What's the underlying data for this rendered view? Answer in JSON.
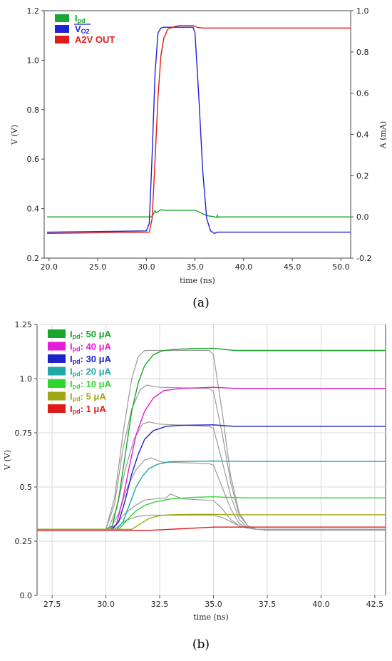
{
  "chart_data": [
    {
      "type": "line",
      "caption": "(a)",
      "xlabel": "time (ns)",
      "ylabel": "V (V)",
      "ylabel_right": "A (mA)",
      "xlim": [
        19.5,
        51.0
      ],
      "ylim": [
        0.2,
        1.2
      ],
      "ylim_right": [
        -0.2,
        1.0
      ],
      "xticks": [
        "20.0",
        "25.0",
        "30.0",
        "35.0",
        "40.0",
        "45.0",
        "50.0"
      ],
      "yticks": [
        "0.2",
        "0.4",
        "0.6",
        "0.8",
        "1.0",
        "1.2"
      ],
      "yticks_right": [
        "-0.2",
        "0.0",
        "0.2",
        "0.4",
        "0.6",
        "0.8",
        "1.0"
      ],
      "grid": false,
      "legend_position": "top-left",
      "series": [
        {
          "name_main": "I",
          "name_sub": "pd",
          "name": "Ipd",
          "color": "#1aa632",
          "axis": "right",
          "x": [
            19.8,
            30.5,
            30.7,
            30.9,
            31.0,
            31.2,
            31.5,
            31.8,
            34.9,
            35.1,
            35.6,
            36.0,
            36.5,
            37.0,
            37.2,
            37.3,
            37.4,
            37.6,
            51.0
          ],
          "y": [
            0.0,
            0.0,
            0.012,
            0.03,
            0.02,
            0.025,
            0.035,
            0.032,
            0.032,
            0.03,
            0.02,
            0.01,
            0.004,
            0.001,
            -0.004,
            0.008,
            -0.002,
            0.0,
            0.0
          ]
        },
        {
          "name_main": "V",
          "name_sub": "O2",
          "name": "VO2",
          "overline": true,
          "color": "#1f22d6",
          "axis": "left",
          "x": [
            19.8,
            30.0,
            30.3,
            30.6,
            30.9,
            31.2,
            31.5,
            31.8,
            32.2,
            34.8,
            35.0,
            35.4,
            35.8,
            36.2,
            36.6,
            37.0,
            37.3,
            37.6,
            38.0,
            51.0
          ],
          "y": [
            0.305,
            0.31,
            0.34,
            0.62,
            0.95,
            1.11,
            1.13,
            1.133,
            1.133,
            1.133,
            1.11,
            0.85,
            0.55,
            0.36,
            0.31,
            0.3,
            0.305,
            0.305,
            0.305,
            0.305
          ]
        },
        {
          "name_main": "A2V OUT",
          "name_sub": "",
          "name": "A2V OUT",
          "color": "#e01b1b",
          "axis": "left",
          "x": [
            19.8,
            30.3,
            30.6,
            30.9,
            31.2,
            31.5,
            31.8,
            32.2,
            32.8,
            33.5,
            34.8,
            35.3,
            35.8,
            51.0
          ],
          "y": [
            0.3,
            0.305,
            0.36,
            0.6,
            0.85,
            1.02,
            1.09,
            1.125,
            1.135,
            1.14,
            1.14,
            1.132,
            1.13,
            1.13
          ]
        }
      ]
    },
    {
      "type": "line",
      "caption": "(b)",
      "xlabel": "time (ns)",
      "ylabel": "V (V)",
      "xlim": [
        26.8,
        43.0
      ],
      "ylim": [
        0.0,
        1.25
      ],
      "xticks": [
        "27.5",
        "30.0",
        "32.5",
        "35.0",
        "37.5",
        "40.0",
        "42.5"
      ],
      "yticks": [
        "0.0",
        "0.25",
        "0.5",
        "0.75",
        "1.0",
        "1.25"
      ],
      "grid": true,
      "legend_position": "top-left",
      "series": [
        {
          "name_main": "I",
          "name_sub": "pd",
          "name_suffix": ": 50  μA",
          "name": "Ipd: 50 μA",
          "color": "#1aa62a",
          "x": [
            26.8,
            30.0,
            30.3,
            30.6,
            30.9,
            31.2,
            31.5,
            31.8,
            32.2,
            32.6,
            33.2,
            34.0,
            35.0,
            35.5,
            36.0,
            43.0
          ],
          "y": [
            0.305,
            0.305,
            0.32,
            0.45,
            0.65,
            0.85,
            0.98,
            1.06,
            1.11,
            1.128,
            1.135,
            1.138,
            1.14,
            1.135,
            1.13,
            1.13
          ]
        },
        {
          "name_main": "I",
          "name_sub": "pd",
          "name_suffix": ": 40  μA",
          "name": "Ipd: 40 μA",
          "color": "#e21ed8",
          "x": [
            26.8,
            30.2,
            30.5,
            30.8,
            31.1,
            31.4,
            31.8,
            32.2,
            32.7,
            33.5,
            35.0,
            35.5,
            36.0,
            43.0
          ],
          "y": [
            0.305,
            0.305,
            0.33,
            0.45,
            0.6,
            0.74,
            0.85,
            0.91,
            0.945,
            0.955,
            0.96,
            0.958,
            0.955,
            0.955
          ]
        },
        {
          "name_main": "I",
          "name_sub": "pd",
          "name_suffix": ": 30  μA",
          "name": "Ipd: 30 μA",
          "color": "#1f22c8",
          "x": [
            26.8,
            30.3,
            30.6,
            30.9,
            31.2,
            31.5,
            31.8,
            32.2,
            32.8,
            33.5,
            35.0,
            35.5,
            36.0,
            43.0
          ],
          "y": [
            0.305,
            0.305,
            0.34,
            0.44,
            0.56,
            0.65,
            0.72,
            0.76,
            0.78,
            0.785,
            0.787,
            0.783,
            0.78,
            0.78
          ]
        },
        {
          "name_main": "I",
          "name_sub": "pd",
          "name_suffix": ": 20  μA",
          "name": "Ipd: 20 μA",
          "color": "#1fa8a8",
          "x": [
            26.8,
            30.5,
            30.8,
            31.1,
            31.4,
            31.7,
            32.0,
            32.4,
            33.0,
            35.0,
            35.5,
            36.5,
            43.0
          ],
          "y": [
            0.305,
            0.305,
            0.34,
            0.42,
            0.5,
            0.55,
            0.585,
            0.605,
            0.617,
            0.62,
            0.619,
            0.618,
            0.618
          ]
        },
        {
          "name_main": "I",
          "name_sub": "pd",
          "name_suffix": ": 10  μA",
          "name": "Ipd: 10 μA",
          "color": "#2fd62f",
          "x": [
            26.8,
            30.6,
            31.0,
            31.4,
            31.8,
            32.3,
            33.0,
            34.0,
            35.0,
            35.5,
            36.5,
            43.0
          ],
          "y": [
            0.305,
            0.305,
            0.35,
            0.39,
            0.415,
            0.432,
            0.445,
            0.452,
            0.455,
            0.453,
            0.45,
            0.45
          ]
        },
        {
          "name_main": "I",
          "name_sub": "pd",
          "name_suffix": ": 5  μA",
          "name": "Ipd: 5 μA",
          "color": "#9ea812",
          "x": [
            26.8,
            31.2,
            31.6,
            32.0,
            32.5,
            33.0,
            34.0,
            35.0,
            36.0,
            43.0
          ],
          "y": [
            0.305,
            0.305,
            0.33,
            0.355,
            0.368,
            0.372,
            0.374,
            0.374,
            0.372,
            0.372
          ]
        },
        {
          "name_main": "I",
          "name_sub": "pd",
          "name_suffix": ": 1  μA",
          "name": "Ipd: 1 μA",
          "color": "#e01b1b",
          "x": [
            26.8,
            32.0,
            33.0,
            34.0,
            35.0,
            36.0,
            43.0
          ],
          "y": [
            0.3,
            0.3,
            0.305,
            0.31,
            0.315,
            0.315,
            0.315
          ]
        }
      ],
      "overlay_series": {
        "color": "#9a9a9a",
        "curves": [
          {
            "x": [
              26.8,
              30.0,
              30.4,
              30.8,
              31.2,
              31.5,
              31.8,
              32.5,
              34.8,
              35.0,
              35.4,
              35.8,
              36.2,
              36.6,
              37.0,
              37.5,
              43.0
            ],
            "y": [
              0.305,
              0.305,
              0.45,
              0.75,
              1.0,
              1.1,
              1.13,
              1.13,
              1.13,
              1.11,
              0.85,
              0.55,
              0.38,
              0.32,
              0.305,
              0.3,
              0.3
            ]
          },
          {
            "x": [
              26.8,
              30.0,
              30.4,
              30.8,
              31.2,
              31.6,
              31.9,
              32.5,
              34.8,
              35.0,
              35.4,
              35.8,
              36.2,
              36.6,
              37.0,
              43.0
            ],
            "y": [
              0.305,
              0.305,
              0.42,
              0.68,
              0.86,
              0.95,
              0.97,
              0.96,
              0.955,
              0.94,
              0.75,
              0.52,
              0.37,
              0.32,
              0.305,
              0.305
            ]
          },
          {
            "x": [
              26.8,
              30.1,
              30.5,
              30.9,
              31.3,
              31.7,
              32.0,
              32.5,
              34.8,
              35.0,
              35.4,
              35.8,
              36.2,
              36.6,
              37.0,
              43.0
            ],
            "y": [
              0.305,
              0.305,
              0.4,
              0.58,
              0.72,
              0.79,
              0.8,
              0.79,
              0.78,
              0.77,
              0.62,
              0.46,
              0.35,
              0.31,
              0.305,
              0.305
            ]
          },
          {
            "x": [
              26.8,
              30.2,
              30.6,
              31.0,
              31.4,
              31.8,
              32.1,
              32.6,
              34.8,
              35.0,
              35.4,
              35.8,
              36.2,
              36.6,
              37.0,
              43.0
            ],
            "y": [
              0.305,
              0.305,
              0.38,
              0.5,
              0.58,
              0.625,
              0.635,
              0.615,
              0.608,
              0.6,
              0.5,
              0.4,
              0.33,
              0.31,
              0.305,
              0.305
            ]
          },
          {
            "x": [
              26.8,
              30.3,
              30.8,
              31.3,
              31.8,
              32.3,
              32.8,
              33.0,
              33.3,
              33.6,
              34.5,
              35.0,
              35.4,
              35.8,
              36.2,
              36.6,
              37.0,
              43.0
            ],
            "y": [
              0.305,
              0.305,
              0.37,
              0.41,
              0.44,
              0.445,
              0.45,
              0.468,
              0.455,
              0.445,
              0.44,
              0.438,
              0.4,
              0.35,
              0.32,
              0.31,
              0.305,
              0.305
            ]
          },
          {
            "x": [
              26.8,
              30.4,
              30.9,
              31.5,
              32.0,
              32.5,
              35.0,
              35.4,
              35.8,
              36.2,
              36.6,
              37.0,
              43.0
            ],
            "y": [
              0.305,
              0.305,
              0.345,
              0.365,
              0.37,
              0.37,
              0.37,
              0.36,
              0.34,
              0.32,
              0.31,
              0.305,
              0.305
            ]
          }
        ]
      }
    }
  ]
}
